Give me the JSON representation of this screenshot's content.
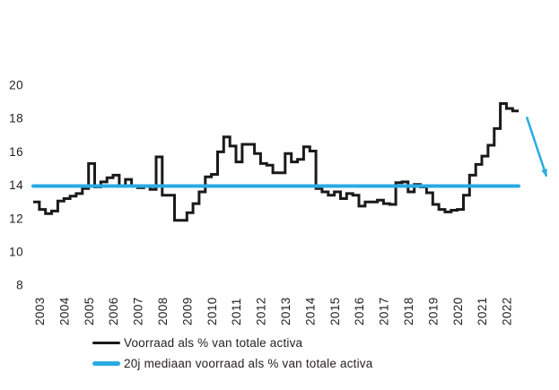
{
  "chart_data": {
    "type": "line",
    "subtype": "step",
    "title": "",
    "xlabel": "",
    "ylabel": "",
    "x_tick_labels": [
      "2003",
      "2004",
      "2005",
      "2006",
      "2007",
      "2008",
      "2009",
      "2010",
      "2011",
      "2012",
      "2013",
      "2014",
      "2015",
      "2016",
      "2017",
      "2018",
      "2019",
      "2020",
      "2021",
      "2022"
    ],
    "y_tick_labels": [
      "20",
      "18",
      "16",
      "14",
      "12",
      "10",
      "8"
    ],
    "y_ticks": [
      20,
      18,
      16,
      14,
      12,
      10,
      8
    ],
    "ylim": [
      8,
      21
    ],
    "grid": false,
    "axes_drawn": false,
    "points_per_year": 4,
    "series": [
      {
        "name": "Voorraad als % van totale activa",
        "type": "step",
        "color": "#1a1a1a",
        "start_year": 2003,
        "values": [
          13.0,
          12.55,
          12.3,
          12.45,
          13.05,
          13.2,
          13.35,
          13.5,
          13.8,
          15.3,
          13.9,
          14.2,
          14.45,
          14.6,
          13.95,
          14.35,
          13.95,
          13.85,
          13.95,
          13.75,
          15.7,
          13.4,
          13.4,
          11.9,
          11.9,
          12.35,
          12.9,
          13.6,
          14.5,
          14.65,
          16.0,
          16.9,
          16.35,
          15.4,
          16.45,
          16.45,
          15.9,
          15.3,
          15.2,
          14.75,
          14.75,
          15.9,
          15.4,
          15.55,
          16.3,
          16.05,
          13.8,
          13.6,
          13.4,
          13.6,
          13.2,
          13.5,
          13.4,
          12.75,
          13.0,
          13.0,
          13.1,
          12.9,
          12.85,
          14.15,
          14.2,
          13.6,
          14.05,
          13.9,
          13.55,
          12.85,
          12.55,
          12.4,
          12.5,
          12.55,
          13.4,
          14.6,
          15.25,
          15.75,
          16.4,
          17.4,
          18.9,
          18.6,
          18.45
        ]
      },
      {
        "name": "20j mediaan voorraad als % van totale activa",
        "type": "hline",
        "color": "#29abe2",
        "value": 13.95
      }
    ],
    "annotations": [
      {
        "type": "arrow",
        "color": "#29abe2",
        "meaning": "projected-decline-arrow",
        "from_value": 18.1,
        "to_value": 14.7
      }
    ],
    "legend_position": "bottom"
  },
  "legend": {
    "items": [
      {
        "label": "Voorraad als % van totale activa",
        "color": "#1a1a1a"
      },
      {
        "label": "20j mediaan voorraad als % van totale activa",
        "color": "#29abe2"
      }
    ]
  }
}
